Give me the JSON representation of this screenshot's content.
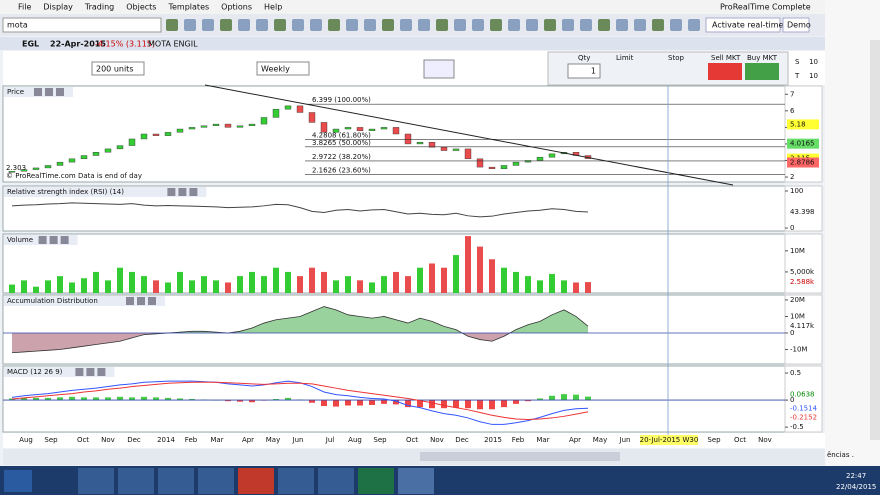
{
  "menu": [
    "File",
    "Display",
    "Trading",
    "Objects",
    "Templates",
    "Options",
    "Help"
  ],
  "app_title": "ProRealTime Complete",
  "search": "mota",
  "activate": "Activate real-time",
  "demo": "Demo",
  "header": {
    "symbol": "EGL",
    "date": "22-Apr-2015",
    "change": "-4.15% (3.115)",
    "name": "MOTA ENGIL"
  },
  "controls": {
    "units": "200 units",
    "period": "Weekly"
  },
  "order": {
    "qty_label": "Qty",
    "qty": 1,
    "limit": "Limit",
    "stop": "Stop",
    "sell": "Sell MKT",
    "buy": "Buy MKT",
    "s": "S",
    "s_value": 10,
    "t": "T",
    "t_value": 10
  },
  "copyright": "© ProRealTime.com  Data is end of day",
  "x_labels": [
    "Aug",
    "Sep",
    "Oct",
    "Nov",
    "Dec",
    "2014",
    "Feb",
    "Mar",
    "Apr",
    "May",
    "Jun",
    "Jul",
    "Aug",
    "Sep",
    "Oct",
    "Nov",
    "Dec",
    "2015",
    "Feb",
    "Mar",
    "Apr",
    "May",
    "Jun",
    "20-Jul-2015 W30",
    "Sep",
    "Oct",
    "Nov"
  ],
  "side_text": "ências .",
  "clock": {
    "time": "22:47",
    "date": "22/04/2015"
  },
  "chart_data": [
    {
      "type": "candlestick",
      "title": "Price",
      "up_color": "#33cc33",
      "down_color": "#e84c4c",
      "open": [
        2.303,
        2.35,
        2.45,
        2.55,
        2.7,
        2.9,
        3.1,
        3.3,
        3.5,
        3.7,
        3.9,
        4.3,
        4.6,
        4.5,
        4.7,
        4.9,
        5.0,
        5.1,
        5.2,
        5.0,
        5.1,
        5.2,
        5.6,
        6.1,
        6.3,
        5.9,
        5.3,
        4.7,
        4.9,
        5.0,
        4.8,
        4.9,
        5.0,
        4.6,
        4.0,
        4.1,
        3.8,
        3.6,
        3.7,
        3.1,
        2.6,
        2.5,
        2.7,
        2.9,
        3.0,
        3.2,
        3.4,
        3.5,
        3.3
      ],
      "close": [
        2.35,
        2.45,
        2.55,
        2.7,
        2.9,
        3.1,
        3.3,
        3.5,
        3.7,
        3.9,
        4.3,
        4.6,
        4.5,
        4.7,
        4.9,
        5.0,
        5.1,
        5.2,
        5.0,
        5.1,
        5.2,
        5.6,
        6.1,
        6.3,
        5.9,
        5.3,
        4.7,
        4.9,
        5.0,
        4.8,
        4.9,
        5.0,
        4.6,
        4.0,
        4.1,
        3.8,
        3.6,
        3.7,
        3.1,
        2.6,
        2.5,
        2.7,
        2.9,
        3.0,
        3.2,
        3.4,
        3.5,
        3.3,
        3.115
      ],
      "ylim": [
        1.7,
        7.5
      ],
      "yticks": [
        2,
        3,
        4,
        5,
        6,
        7
      ],
      "low_label": 2.303,
      "fib_levels": [
        {
          "value": 6.399,
          "label": "6.399 (100.00%)"
        },
        {
          "value": 4.2808,
          "label": "4.2808 (61.80%)"
        },
        {
          "value": 3.8265,
          "label": "3.8265 (50.00%)"
        },
        {
          "value": 2.9722,
          "label": "2.9722 (38.20%)"
        },
        {
          "value": 2.1626,
          "label": "2.1626 (23.60%)"
        }
      ],
      "price_tags": [
        {
          "value": 5.18,
          "color": "#ffff33"
        },
        {
          "value": 4.0165,
          "color": "#66dd66"
        },
        {
          "value": 3.115,
          "color": "#ffff33"
        },
        {
          "value": 2.8786,
          "color": "#ff6666"
        }
      ]
    },
    {
      "type": "line",
      "title": "Relative strength index (RSI) (14)",
      "ylim": [
        -8,
        113.5
      ],
      "yticks": [
        0,
        100
      ],
      "series": [
        {
          "color": "#444444",
          "values": [
            60,
            62,
            63,
            65,
            66,
            68,
            67,
            66,
            65,
            64,
            66,
            62,
            60,
            61,
            60,
            59,
            58,
            57,
            55,
            56,
            57,
            60,
            64,
            63,
            55,
            45,
            42,
            48,
            50,
            46,
            49,
            50,
            44,
            38,
            40,
            37,
            36,
            40,
            33,
            30,
            32,
            38,
            42,
            46,
            48,
            52,
            50,
            45,
            43.398
          ]
        }
      ]
    },
    {
      "type": "bar",
      "title": "Volume",
      "ylim": [
        0,
        14
      ],
      "yticks": [
        {
          "value": 10,
          "label": "10M"
        },
        {
          "value": 5,
          "label": "5,000k"
        }
      ],
      "last_label": "2.588k",
      "values": [
        2,
        3,
        1.5,
        3,
        4,
        2.5,
        3.5,
        5,
        3,
        6,
        5,
        4,
        3,
        2.5,
        5,
        3,
        4,
        3,
        2.5,
        4,
        5,
        4,
        6,
        5,
        4,
        6,
        5,
        3,
        4,
        3,
        2.5,
        4,
        5,
        4,
        6,
        7,
        6,
        9,
        13.5,
        11,
        8,
        6,
        5,
        4,
        3,
        4.5,
        3,
        2.5,
        2.588
      ]
    },
    {
      "type": "area",
      "title": "Accumulation Distribution",
      "ylim": [
        -18.8,
        23
      ],
      "yticks": [
        {
          "value": 20,
          "label": "20M"
        },
        {
          "value": 10,
          "label": "10M"
        },
        0,
        {
          "value": -10,
          "label": "-10M"
        }
      ],
      "last_label": "4.117k",
      "pos_color": "#6fbf73",
      "neg_color": "#b77a8a",
      "values": [
        -12,
        -11.5,
        -11,
        -10.5,
        -10,
        -9,
        -8,
        -7,
        -6,
        -5,
        -3,
        -1,
        -0.5,
        0,
        0.5,
        1,
        1,
        0.5,
        0,
        1,
        3,
        6,
        8,
        9,
        10,
        13,
        16,
        14,
        11,
        10,
        9,
        10,
        8,
        6,
        9,
        7,
        4,
        2,
        -2,
        -4,
        -5,
        -2,
        2,
        5,
        7,
        11,
        14,
        10,
        4.117
      ]
    },
    {
      "type": "macd",
      "title": "MACD (12 26 9)",
      "ylim": [
        -0.59,
        0.63
      ],
      "yticks": [
        0.5,
        0,
        -0.5
      ],
      "histogram": [
        0.03,
        0.04,
        0.04,
        0.04,
        0.05,
        0.06,
        0.05,
        0.05,
        0.05,
        0.06,
        0.05,
        0.06,
        0.05,
        0.04,
        0.03,
        0.02,
        0.01,
        0,
        -0.02,
        -0.03,
        -0.04,
        -0.01,
        0.02,
        0.04,
        0.01,
        -0.05,
        -0.11,
        -0.12,
        -0.1,
        -0.1,
        -0.09,
        -0.07,
        -0.08,
        -0.13,
        -0.13,
        -0.15,
        -0.15,
        -0.14,
        -0.15,
        -0.17,
        -0.17,
        -0.13,
        -0.07,
        -0.02,
        0.03,
        0.08,
        0.11,
        0.1,
        0.0638
      ],
      "series": [
        {
          "color": "#3355ff",
          "values": [
            0.05,
            0.08,
            0.1,
            0.12,
            0.15,
            0.18,
            0.2,
            0.22,
            0.25,
            0.28,
            0.3,
            0.33,
            0.34,
            0.35,
            0.35,
            0.35,
            0.34,
            0.33,
            0.3,
            0.28,
            0.26,
            0.28,
            0.32,
            0.35,
            0.32,
            0.25,
            0.15,
            0.1,
            0.08,
            0.05,
            0.03,
            0.02,
            -0.02,
            -0.1,
            -0.14,
            -0.2,
            -0.25,
            -0.28,
            -0.33,
            -0.4,
            -0.45,
            -0.45,
            -0.42,
            -0.38,
            -0.32,
            -0.25,
            -0.19,
            -0.16,
            -0.1514
          ]
        },
        {
          "color": "#ee3333",
          "values": [
            0.02,
            0.04,
            0.06,
            0.08,
            0.1,
            0.12,
            0.15,
            0.17,
            0.2,
            0.22,
            0.25,
            0.27,
            0.29,
            0.31,
            0.32,
            0.33,
            0.33,
            0.33,
            0.32,
            0.31,
            0.3,
            0.29,
            0.3,
            0.31,
            0.31,
            0.3,
            0.26,
            0.22,
            0.18,
            0.15,
            0.12,
            0.09,
            0.06,
            0.03,
            -0.01,
            -0.05,
            -0.1,
            -0.14,
            -0.18,
            -0.23,
            -0.28,
            -0.32,
            -0.35,
            -0.36,
            -0.35,
            -0.33,
            -0.3,
            -0.26,
            -0.2152
          ]
        }
      ],
      "pos_color": "#44cc44",
      "neg_color": "#ee4444"
    }
  ]
}
